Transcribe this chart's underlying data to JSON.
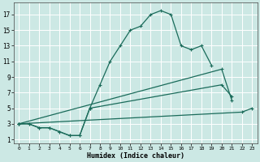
{
  "xlabel": "Humidex (Indice chaleur)",
  "background_color": "#cce8e4",
  "line_color": "#1a6b5a",
  "grid_color": "#ffffff",
  "xlim": [
    -0.5,
    23.5
  ],
  "ylim": [
    0.5,
    18.5
  ],
  "xticks": [
    0,
    1,
    2,
    3,
    4,
    5,
    6,
    7,
    8,
    9,
    10,
    11,
    12,
    13,
    14,
    15,
    16,
    17,
    18,
    19,
    20,
    21,
    22,
    23
  ],
  "yticks": [
    1,
    3,
    5,
    7,
    9,
    11,
    13,
    15,
    17
  ],
  "series": [
    {
      "x": [
        0,
        1,
        2,
        3,
        4,
        5,
        6,
        7,
        8,
        9,
        10,
        11,
        12,
        13,
        14,
        15,
        16,
        17,
        18,
        19
      ],
      "y": [
        3,
        3,
        2.5,
        2.5,
        2,
        1.5,
        1.5,
        5,
        8,
        11,
        13,
        15,
        15.5,
        17,
        17.5,
        17,
        13,
        12.5,
        13,
        10.5
      ]
    },
    {
      "x": [
        0,
        1,
        2,
        3,
        4,
        5,
        6,
        7,
        20,
        21
      ],
      "y": [
        3,
        3,
        2.5,
        2.5,
        2,
        1.5,
        1.5,
        5,
        8,
        6.5
      ]
    },
    {
      "x": [
        0,
        20,
        21
      ],
      "y": [
        3,
        10,
        6
      ]
    },
    {
      "x": [
        0,
        22,
        23
      ],
      "y": [
        3,
        4.5,
        5
      ]
    }
  ]
}
